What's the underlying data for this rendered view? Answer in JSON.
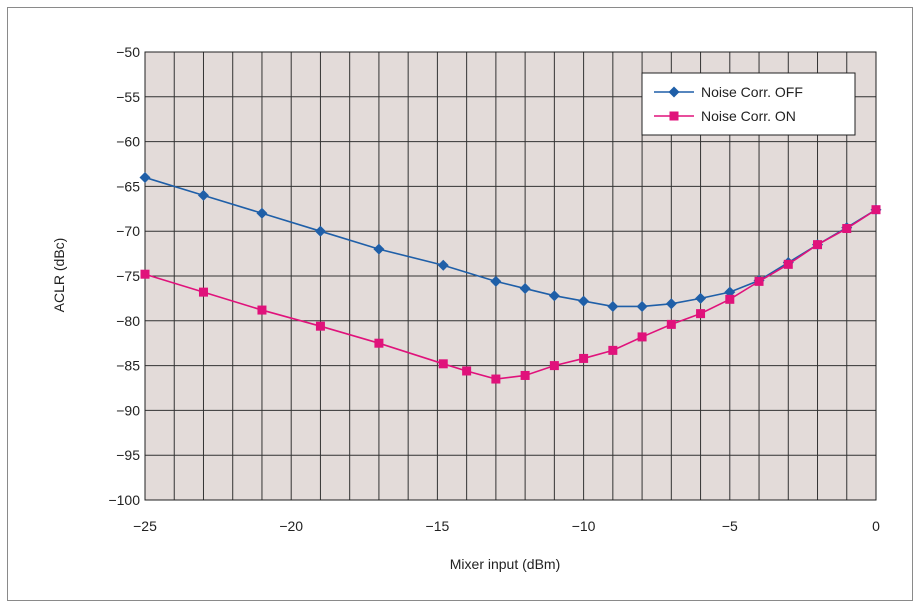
{
  "chart_data": {
    "type": "line",
    "title": "",
    "xlabel": "Mixer input (dBm)",
    "ylabel": "ACLR (dBc)",
    "xlim": [
      -25,
      0
    ],
    "ylim": [
      -100,
      -50
    ],
    "x_ticks": [
      -25,
      -20,
      -15,
      -10,
      -5,
      0
    ],
    "y_ticks": [
      -50,
      -55,
      -60,
      -65,
      -70,
      -75,
      -80,
      -85,
      -90,
      -95,
      -100
    ],
    "grid": true,
    "legend_position": "top-right",
    "plot_background": "#e3dbd9",
    "series": [
      {
        "name": "Noise Corr. OFF",
        "color": "#1f5fa8",
        "marker": "diamond",
        "x": [
          -25,
          -23,
          -21,
          -19,
          -17,
          -14.8,
          -13,
          -12,
          -11,
          -10,
          -9,
          -8,
          -7,
          -6,
          -5,
          -4,
          -3,
          -2,
          -1,
          0
        ],
        "y": [
          -64,
          -66,
          -68,
          -70,
          -72,
          -73.8,
          -75.6,
          -76.4,
          -77.2,
          -77.8,
          -78.4,
          -78.4,
          -78.1,
          -77.5,
          -76.8,
          -75.5,
          -73.5,
          -71.5,
          -69.6,
          -67.6
        ]
      },
      {
        "name": "Noise Corr. ON",
        "color": "#e0127b",
        "marker": "square",
        "x": [
          -25,
          -23,
          -21,
          -19,
          -17,
          -14.8,
          -14,
          -13,
          -12,
          -11,
          -10,
          -9,
          -8,
          -7,
          -6,
          -5,
          -4,
          -3,
          -2,
          -1,
          0
        ],
        "y": [
          -74.8,
          -76.8,
          -78.8,
          -80.6,
          -82.5,
          -84.8,
          -85.6,
          -86.5,
          -86.1,
          -85,
          -84.2,
          -83.3,
          -81.8,
          -80.4,
          -79.2,
          -77.6,
          -75.6,
          -73.7,
          -71.5,
          -69.7,
          -67.6
        ]
      }
    ]
  }
}
